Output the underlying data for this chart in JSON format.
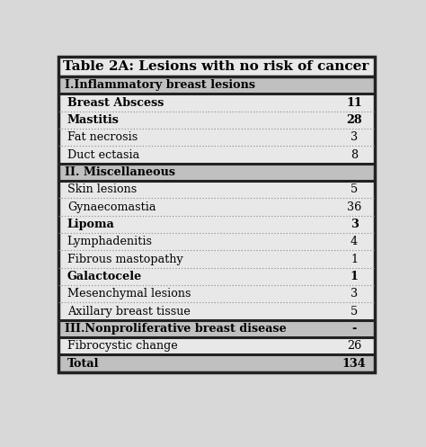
{
  "title": "Table 2A: Lesions with no risk of cancer",
  "rows": [
    {
      "label": "I.Inflammatory breast lesions",
      "value": "",
      "style": "section_header"
    },
    {
      "label": "Breast Abscess",
      "value": "11",
      "style": "bold"
    },
    {
      "label": "Mastitis",
      "value": "28",
      "style": "bold"
    },
    {
      "label": "Fat necrosis",
      "value": "3",
      "style": "normal"
    },
    {
      "label": "Duct ectasia",
      "value": "8",
      "style": "normal"
    },
    {
      "label": "II. Miscellaneous",
      "value": "",
      "style": "section_header"
    },
    {
      "label": "Skin lesions",
      "value": "5",
      "style": "normal"
    },
    {
      "label": "Gynaecomastia",
      "value": "36",
      "style": "normal"
    },
    {
      "label": "Lipoma",
      "value": "3",
      "style": "bold"
    },
    {
      "label": "Lymphadenitis",
      "value": "4",
      "style": "normal"
    },
    {
      "label": "Fibrous mastopathy",
      "value": "1",
      "style": "normal"
    },
    {
      "label": "Galactocele",
      "value": "1",
      "style": "bold"
    },
    {
      "label": "Mesenchymal lesions",
      "value": "3",
      "style": "normal"
    },
    {
      "label": "Axillary breast tissue",
      "value": "5",
      "style": "normal"
    },
    {
      "label": "III.Nonproliferative breast disease",
      "value": "-",
      "style": "section_header"
    },
    {
      "label": "Fibrocystic change",
      "value": "26",
      "style": "normal"
    },
    {
      "label": "Total",
      "value": "134",
      "style": "total"
    }
  ],
  "page_bg": "#d8d8d8",
  "table_bg": "#e8e8e8",
  "white_row_bg": "#e8e8e8",
  "section_bg": "#c0c0c0",
  "total_bg": "#c0c0c0",
  "title_bg": "#e8e8e8",
  "border_color": "#222222",
  "dotted_color": "#888888",
  "title_fontsize": 11.0,
  "row_fontsize": 9.2,
  "figsize": [
    4.74,
    4.97
  ],
  "dpi": 100
}
